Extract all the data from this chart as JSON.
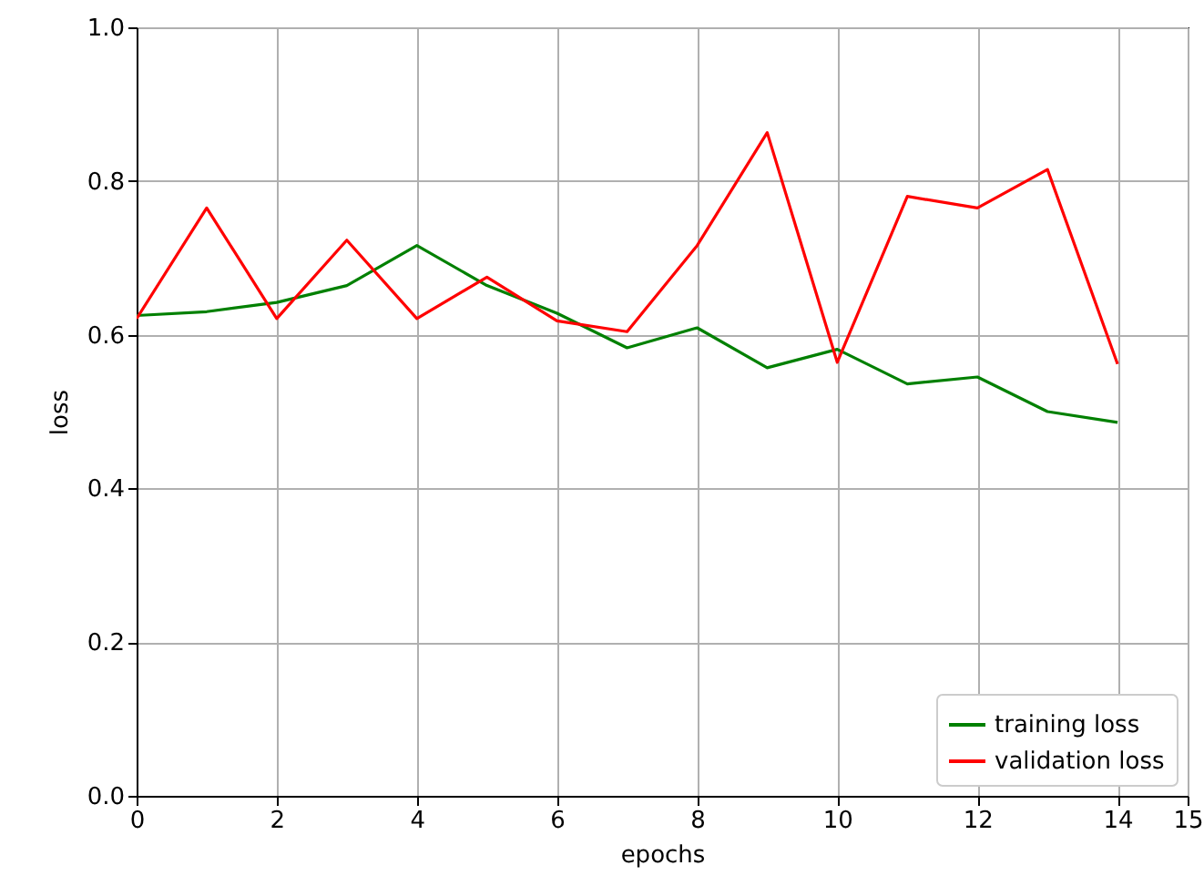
{
  "chart_data": {
    "type": "line",
    "xlabel": "epochs",
    "ylabel": "loss",
    "x": [
      0,
      1,
      2,
      3,
      4,
      5,
      6,
      7,
      8,
      9,
      10,
      11,
      12,
      13,
      14
    ],
    "series": [
      {
        "name": "training loss",
        "color": "#008000",
        "values": [
          0.625,
          0.63,
          0.642,
          0.664,
          0.716,
          0.664,
          0.628,
          0.583,
          0.609,
          0.557,
          0.581,
          0.536,
          0.545,
          0.5,
          0.486
        ]
      },
      {
        "name": "validation loss",
        "color": "#ff0000",
        "values": [
          0.621,
          0.765,
          0.621,
          0.723,
          0.621,
          0.675,
          0.618,
          0.604,
          0.716,
          0.863,
          0.564,
          0.78,
          0.765,
          0.815,
          0.562
        ]
      }
    ],
    "xlim": [
      0,
      15
    ],
    "xticks": [
      0,
      2,
      4,
      6,
      8,
      10,
      12,
      14,
      15
    ],
    "ylim": [
      0,
      1
    ],
    "yticks": [
      {
        "value": 0,
        "label": "0.0"
      },
      0.2,
      0.4,
      0.6,
      0.8,
      {
        "value": 1,
        "label": "1.0"
      }
    ],
    "grid": true,
    "legend": "bottom right",
    "line_style": "solid",
    "marker": "none"
  }
}
